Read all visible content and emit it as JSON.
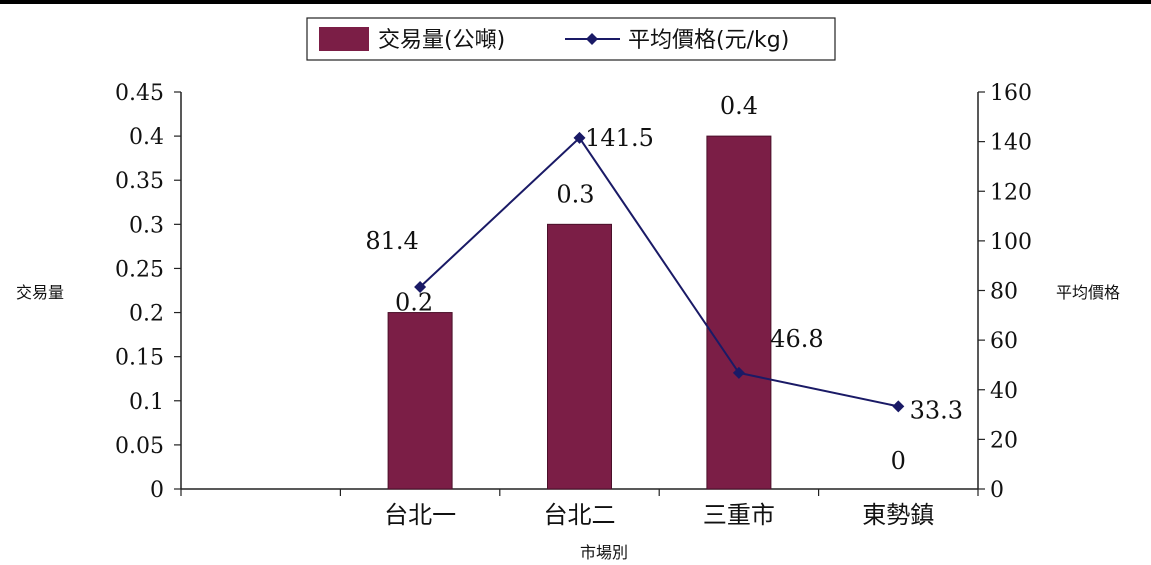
{
  "chart_data": {
    "type": "bar",
    "categories": [
      "台北一",
      "台北二",
      "三重市",
      "東勢鎮"
    ],
    "series": [
      {
        "name": "交易量(公噸)",
        "kind": "bar",
        "axis": "left",
        "color": "#7b1e46",
        "values": [
          0.2,
          0.3,
          0.4,
          0
        ],
        "value_labels": [
          "0.2",
          "0.3",
          "0.4",
          "0"
        ]
      },
      {
        "name": "平均價格(元/kg)",
        "kind": "line",
        "axis": "right",
        "color": "#1a1a66",
        "marker": "diamond",
        "values": [
          81.4,
          141.5,
          46.8,
          33.3
        ],
        "value_labels": [
          "81.4",
          "141.5",
          "46.8",
          "33.3"
        ]
      }
    ],
    "xlabel": "市場別",
    "ylabel_left": "交易量",
    "ylabel_right": "平均價格",
    "ylim_left": [
      0,
      0.45
    ],
    "yticks_left": [
      "0",
      "0.05",
      "0.1",
      "0.15",
      "0.2",
      "0.25",
      "0.3",
      "0.35",
      "0.4",
      "0.45"
    ],
    "ylim_right": [
      0,
      160
    ],
    "yticks_right": [
      "0",
      "20",
      "40",
      "60",
      "80",
      "100",
      "120",
      "140",
      "160"
    ],
    "grid": false,
    "legend_position": "top"
  }
}
